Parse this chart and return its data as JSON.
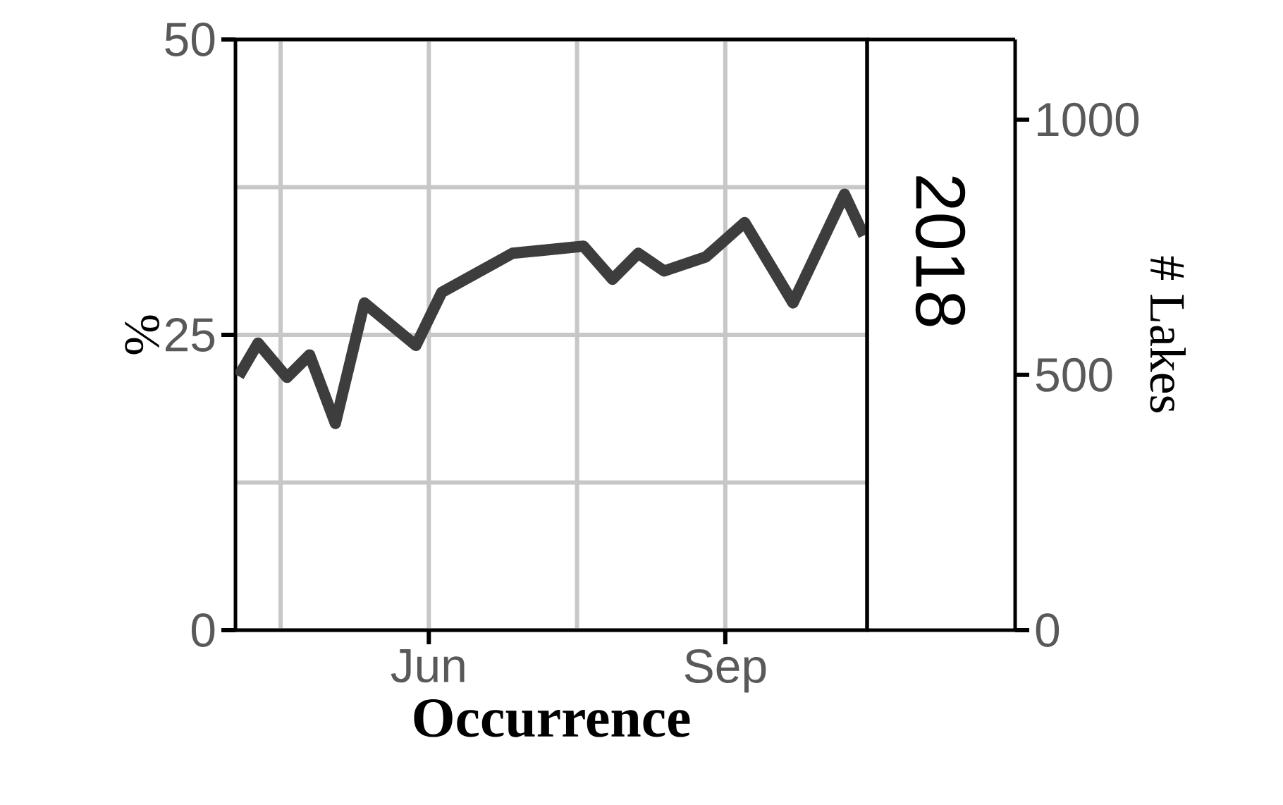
{
  "chart_data": {
    "type": "line",
    "xlabel": "Occurrence",
    "ylabel": "%",
    "y2label": "# Lakes",
    "annotations": [
      "2018"
    ],
    "x": [
      "2018-04-03",
      "2018-04-09",
      "2018-04-18",
      "2018-04-25",
      "2018-05-03",
      "2018-05-12",
      "2018-05-28",
      "2018-06-05",
      "2018-06-27",
      "2018-07-19",
      "2018-07-28",
      "2018-08-05",
      "2018-08-13",
      "2018-08-26",
      "2018-09-07",
      "2018-09-22",
      "2018-10-08",
      "2018-10-14"
    ],
    "values": [
      21.5,
      24.3,
      21.4,
      23.3,
      17.5,
      27.7,
      24.1,
      28.6,
      31.9,
      32.5,
      29.7,
      31.9,
      30.4,
      31.6,
      34.5,
      27.7,
      36.9,
      33.4
    ],
    "color": "#3d3d3d",
    "xlim": [
      "2018-04-02",
      "2018-10-15"
    ],
    "xticks": [
      {
        "value": "2018-06-01",
        "label": "Jun"
      },
      {
        "value": "2018-09-01",
        "label": "Sep"
      }
    ],
    "ylim": [
      0,
      50
    ],
    "yticks": [
      0,
      25,
      50
    ],
    "y2lim": [
      0,
      1157
    ],
    "y2ticks": [
      0,
      500,
      1000
    ],
    "grid": true
  }
}
